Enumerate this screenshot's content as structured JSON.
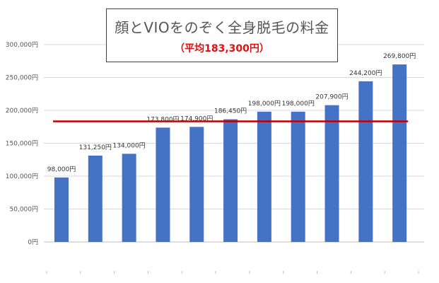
{
  "chart_data": {
    "type": "bar",
    "title": "顔とVIOをのぞく全身脱毛の料金",
    "subtitle": "（平均183,300円）",
    "categories": [
      "",
      "",
      "",
      "",
      "",
      "",
      "",
      "",
      "",
      "",
      ""
    ],
    "values": [
      98000,
      131250,
      134000,
      173800,
      174900,
      186450,
      198000,
      198000,
      207900,
      244200,
      269800
    ],
    "data_labels": [
      "98,000円",
      "131,250円",
      "134,000円",
      "173,800円",
      "174,900円",
      "186,450円",
      "198,000円",
      "198,000円",
      "207,900円",
      "244,200円",
      "269,800円"
    ],
    "yticks": [
      0,
      50000,
      100000,
      150000,
      200000,
      250000,
      300000
    ],
    "ytick_labels": [
      "0円",
      "50,000円",
      "100,000円",
      "150,000円",
      "200,000円",
      "250,000円",
      "300,000円"
    ],
    "ylim": [
      0,
      300000
    ],
    "grid": true,
    "average_line": 183300,
    "colors": {
      "bar": "#4472c4",
      "average": "#c00000",
      "subtitle": "#e01010"
    }
  }
}
